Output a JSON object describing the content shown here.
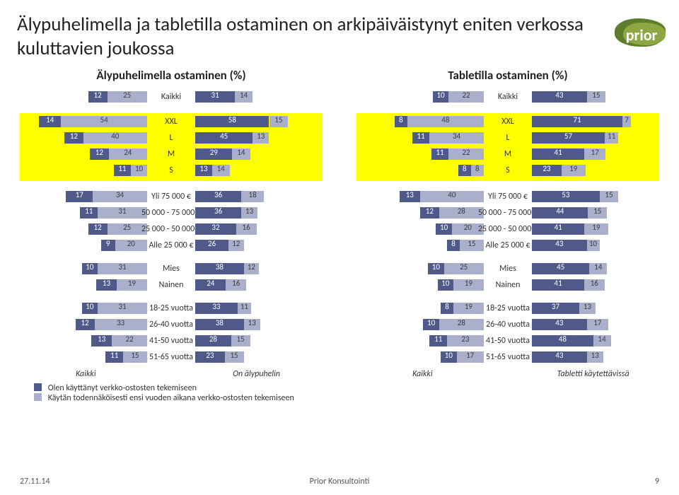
{
  "title": "Älypuhelimella ja tabletilla ostaminen on arkipäiväistynyt eniten verkossa kuluttavien joukossa",
  "logo_text": "prior",
  "color_a": "#4f5a8a",
  "color_b": "#aab0cc",
  "highlight_color": "#ffff00",
  "columns": [
    {
      "id": "phone",
      "title": "Älypuhelimella ostaminen (%)"
    },
    {
      "id": "tablet",
      "title": "Tabletilla ostaminen (%)"
    }
  ],
  "axis_left_phone": "Kaikki",
  "axis_right_phone": "On älypuhelin",
  "axis_left_tablet": "Kaikki",
  "axis_right_tablet": "Tabletti käytettävissä",
  "blocks": [
    {
      "highlight": false,
      "rows": [
        {
          "cat": "Kaikki",
          "phone": {
            "L": [
              12,
              25
            ],
            "R": [
              31,
              14
            ]
          },
          "tablet": {
            "L": [
              10,
              22
            ],
            "R": [
              43,
              15
            ]
          }
        }
      ]
    },
    {
      "highlight": true,
      "rows": [
        {
          "cat": "XXL",
          "phone": {
            "L": [
              14,
              54
            ],
            "R": [
              58,
              15
            ]
          },
          "tablet": {
            "L": [
              8,
              48
            ],
            "R": [
              71,
              7
            ]
          }
        },
        {
          "cat": "L",
          "phone": {
            "L": [
              12,
              40
            ],
            "R": [
              45,
              13
            ]
          },
          "tablet": {
            "L": [
              11,
              34
            ],
            "R": [
              57,
              11
            ]
          }
        },
        {
          "cat": "M",
          "phone": {
            "L": [
              12,
              24
            ],
            "R": [
              29,
              14
            ]
          },
          "tablet": {
            "L": [
              11,
              22
            ],
            "R": [
              41,
              17
            ]
          }
        },
        {
          "cat": "S",
          "phone": {
            "L": [
              11,
              10
            ],
            "R": [
              13,
              14
            ]
          },
          "tablet": {
            "L": [
              8,
              8
            ],
            "R": [
              23,
              19
            ]
          }
        }
      ]
    },
    {
      "highlight": false,
      "rows": [
        {
          "cat": "Yli 75 000 €",
          "phone": {
            "L": [
              17,
              34
            ],
            "R": [
              36,
              18
            ]
          },
          "tablet": {
            "L": [
              13,
              40
            ],
            "R": [
              53,
              15
            ]
          }
        },
        {
          "cat": "50 000 - 75 000 €",
          "phone": {
            "L": [
              11,
              31
            ],
            "R": [
              36,
              13
            ]
          },
          "tablet": {
            "L": [
              12,
              28
            ],
            "R": [
              44,
              15
            ]
          }
        },
        {
          "cat": "25 000 - 50 000 €",
          "phone": {
            "L": [
              12,
              25
            ],
            "R": [
              32,
              16
            ]
          },
          "tablet": {
            "L": [
              10,
              20
            ],
            "R": [
              41,
              19
            ]
          }
        },
        {
          "cat": "Alle 25 000 €",
          "phone": {
            "L": [
              9,
              20
            ],
            "R": [
              26,
              12
            ]
          },
          "tablet": {
            "L": [
              8,
              15
            ],
            "R": [
              43,
              10
            ]
          }
        }
      ]
    },
    {
      "highlight": false,
      "rows": [
        {
          "cat": "Mies",
          "phone": {
            "L": [
              10,
              31
            ],
            "R": [
              38,
              12
            ]
          },
          "tablet": {
            "L": [
              10,
              25
            ],
            "R": [
              45,
              14
            ]
          }
        },
        {
          "cat": "Nainen",
          "phone": {
            "L": [
              13,
              19
            ],
            "R": [
              24,
              16
            ]
          },
          "tablet": {
            "L": [
              10,
              19
            ],
            "R": [
              41,
              16
            ]
          }
        }
      ]
    },
    {
      "highlight": false,
      "rows": [
        {
          "cat": "18-25 vuotta",
          "phone": {
            "L": [
              10,
              31
            ],
            "R": [
              33,
              11
            ]
          },
          "tablet": {
            "L": [
              8,
              19
            ],
            "R": [
              37,
              13
            ]
          }
        },
        {
          "cat": "26-40 vuotta",
          "phone": {
            "L": [
              12,
              33
            ],
            "R": [
              38,
              13
            ]
          },
          "tablet": {
            "L": [
              10,
              28
            ],
            "R": [
              43,
              17
            ]
          }
        },
        {
          "cat": "41-50 vuotta",
          "phone": {
            "L": [
              13,
              22
            ],
            "R": [
              28,
              15
            ]
          },
          "tablet": {
            "L": [
              11,
              23
            ],
            "R": [
              48,
              14
            ]
          }
        },
        {
          "cat": "51-65 vuotta",
          "phone": {
            "L": [
              11,
              15
            ],
            "R": [
              23,
              15
            ]
          },
          "tablet": {
            "L": [
              10,
              17
            ],
            "R": [
              43,
              13
            ]
          }
        }
      ]
    }
  ],
  "legend_a": "Olen käyttänyt verkko-ostosten tekemiseen",
  "legend_b": "Käytän todennäköisesti ensi vuoden aikana verkko-ostosten tekemiseen",
  "footer_date": "27.11.14",
  "footer_mid": "Prior Konsultointi",
  "footer_page": "9",
  "layout": {
    "side_width_pct": 42,
    "scale_left_max": 80,
    "scale_right_max": 100
  }
}
